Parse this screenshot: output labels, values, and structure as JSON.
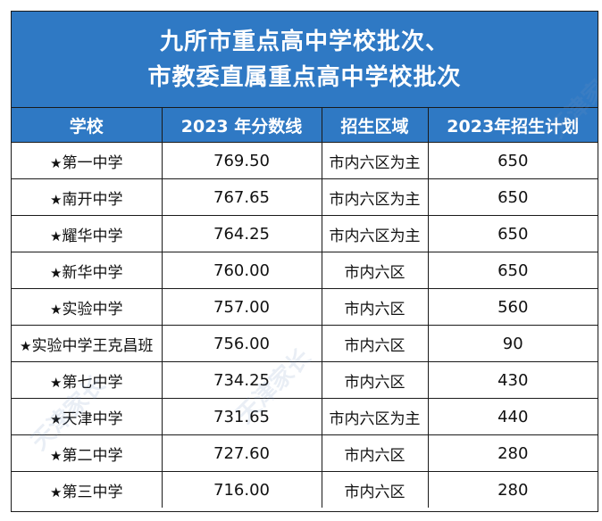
{
  "title": {
    "line1": "九所市重点高中学校批次、",
    "line2": "市教委直属重点高中学校批次"
  },
  "headers": [
    "学校",
    "2023 年分数线",
    "招生区域",
    "2023年招生计划"
  ],
  "star_glyph": "★",
  "rows": [
    {
      "school": "第一中学",
      "score": "769.50",
      "zone": "市内六区为主",
      "plan": "650"
    },
    {
      "school": "南开中学",
      "score": "767.65",
      "zone": "市内六区为主",
      "plan": "650"
    },
    {
      "school": "耀华中学",
      "score": "764.25",
      "zone": "市内六区为主",
      "plan": "650"
    },
    {
      "school": "新华中学",
      "score": "760.00",
      "zone": "市内六区",
      "plan": "650"
    },
    {
      "school": "实验中学",
      "score": "757.00",
      "zone": "市内六区",
      "plan": "560"
    },
    {
      "school": "实验中学王克昌班",
      "score": "756.00",
      "zone": "市内六区",
      "plan": "90"
    },
    {
      "school": "第七中学",
      "score": "734.25",
      "zone": "市内六区",
      "plan": "430"
    },
    {
      "school": "天津中学",
      "score": "731.65",
      "zone": "市内六区为主",
      "plan": "440"
    },
    {
      "school": "第二中学",
      "score": "727.60",
      "zone": "市内六区",
      "plan": "280"
    },
    {
      "school": "第三中学",
      "score": "716.00",
      "zone": "市内六区",
      "plan": "280"
    }
  ],
  "watermark": "天津家长"
}
